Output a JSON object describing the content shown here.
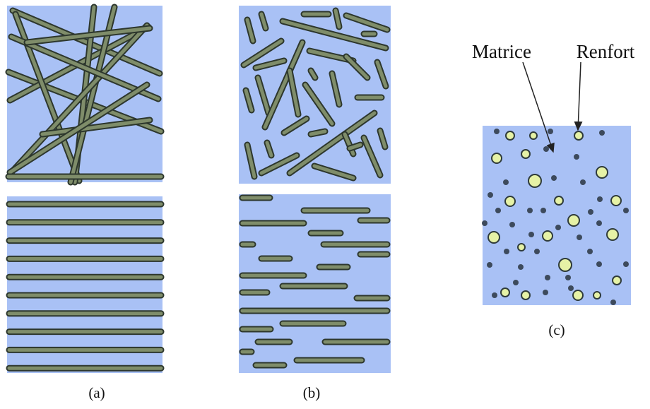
{
  "labels": {
    "matrix": "Matrice",
    "reinforcement": "Renfort"
  },
  "panels": [
    {
      "caption": "(a)"
    },
    {
      "caption": "(b)"
    },
    {
      "caption": "(c)"
    }
  ]
}
